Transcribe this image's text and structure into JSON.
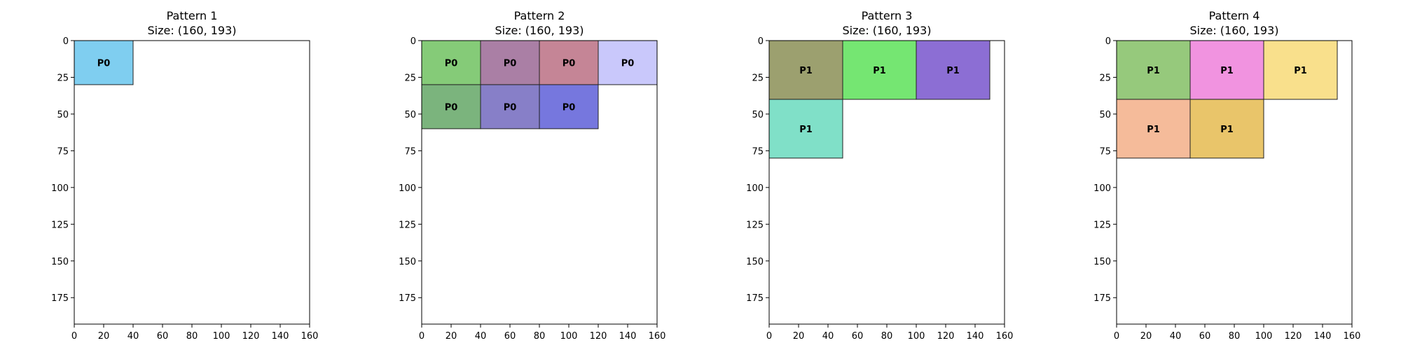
{
  "chart_data": [
    {
      "type": "rectangles",
      "title": "Pattern 1",
      "subtitle": "Size: (160, 193)",
      "xlim": [
        0,
        160
      ],
      "ylim": [
        0,
        193
      ],
      "y_inverted": true,
      "xticks": [
        0,
        20,
        40,
        60,
        80,
        100,
        120,
        140,
        160
      ],
      "yticks": [
        0,
        25,
        50,
        75,
        100,
        125,
        150,
        175
      ],
      "rects": [
        {
          "label": "P0",
          "x": 0,
          "y": 0,
          "w": 40,
          "h": 30,
          "color": "#7fcef0"
        }
      ]
    },
    {
      "type": "rectangles",
      "title": "Pattern 2",
      "subtitle": "Size: (160, 193)",
      "xlim": [
        0,
        160
      ],
      "ylim": [
        0,
        193
      ],
      "y_inverted": true,
      "xticks": [
        0,
        20,
        40,
        60,
        80,
        100,
        120,
        140,
        160
      ],
      "yticks": [
        0,
        25,
        50,
        75,
        100,
        125,
        150,
        175
      ],
      "rects": [
        {
          "label": "P0",
          "x": 0,
          "y": 0,
          "w": 40,
          "h": 30,
          "color": "#85cb78"
        },
        {
          "label": "P0",
          "x": 40,
          "y": 0,
          "w": 40,
          "h": 30,
          "color": "#aa7fa5"
        },
        {
          "label": "P0",
          "x": 80,
          "y": 0,
          "w": 40,
          "h": 30,
          "color": "#c58596"
        },
        {
          "label": "P0",
          "x": 120,
          "y": 0,
          "w": 40,
          "h": 30,
          "color": "#c9c8fb"
        },
        {
          "label": "P0",
          "x": 0,
          "y": 30,
          "w": 40,
          "h": 30,
          "color": "#7bb47d"
        },
        {
          "label": "P0",
          "x": 40,
          "y": 30,
          "w": 40,
          "h": 30,
          "color": "#877fc8"
        },
        {
          "label": "P0",
          "x": 80,
          "y": 30,
          "w": 40,
          "h": 30,
          "color": "#7677de"
        }
      ]
    },
    {
      "type": "rectangles",
      "title": "Pattern 3",
      "subtitle": "Size: (160, 193)",
      "xlim": [
        0,
        160
      ],
      "ylim": [
        0,
        193
      ],
      "y_inverted": true,
      "xticks": [
        0,
        20,
        40,
        60,
        80,
        100,
        120,
        140,
        160
      ],
      "yticks": [
        0,
        25,
        50,
        75,
        100,
        125,
        150,
        175
      ],
      "rects": [
        {
          "label": "P1",
          "x": 0,
          "y": 0,
          "w": 50,
          "h": 40,
          "color": "#9ca06f"
        },
        {
          "label": "P1",
          "x": 50,
          "y": 0,
          "w": 50,
          "h": 40,
          "color": "#75e672"
        },
        {
          "label": "P1",
          "x": 100,
          "y": 0,
          "w": 50,
          "h": 40,
          "color": "#8c6ed4"
        },
        {
          "label": "P1",
          "x": 0,
          "y": 40,
          "w": 50,
          "h": 40,
          "color": "#80e0c8"
        }
      ]
    },
    {
      "type": "rectangles",
      "title": "Pattern 4",
      "subtitle": "Size: (160, 193)",
      "xlim": [
        0,
        160
      ],
      "ylim": [
        0,
        193
      ],
      "y_inverted": true,
      "xticks": [
        0,
        20,
        40,
        60,
        80,
        100,
        120,
        140,
        160
      ],
      "yticks": [
        0,
        25,
        50,
        75,
        100,
        125,
        150,
        175
      ],
      "rects": [
        {
          "label": "P1",
          "x": 0,
          "y": 0,
          "w": 50,
          "h": 40,
          "color": "#96c97c"
        },
        {
          "label": "P1",
          "x": 50,
          "y": 0,
          "w": 50,
          "h": 40,
          "color": "#f193e0"
        },
        {
          "label": "P1",
          "x": 100,
          "y": 0,
          "w": 50,
          "h": 40,
          "color": "#f9e08c"
        },
        {
          "label": "P1",
          "x": 0,
          "y": 40,
          "w": 50,
          "h": 40,
          "color": "#f5bb9a"
        },
        {
          "label": "P1",
          "x": 50,
          "y": 40,
          "w": 50,
          "h": 40,
          "color": "#e9c56a"
        }
      ]
    }
  ]
}
